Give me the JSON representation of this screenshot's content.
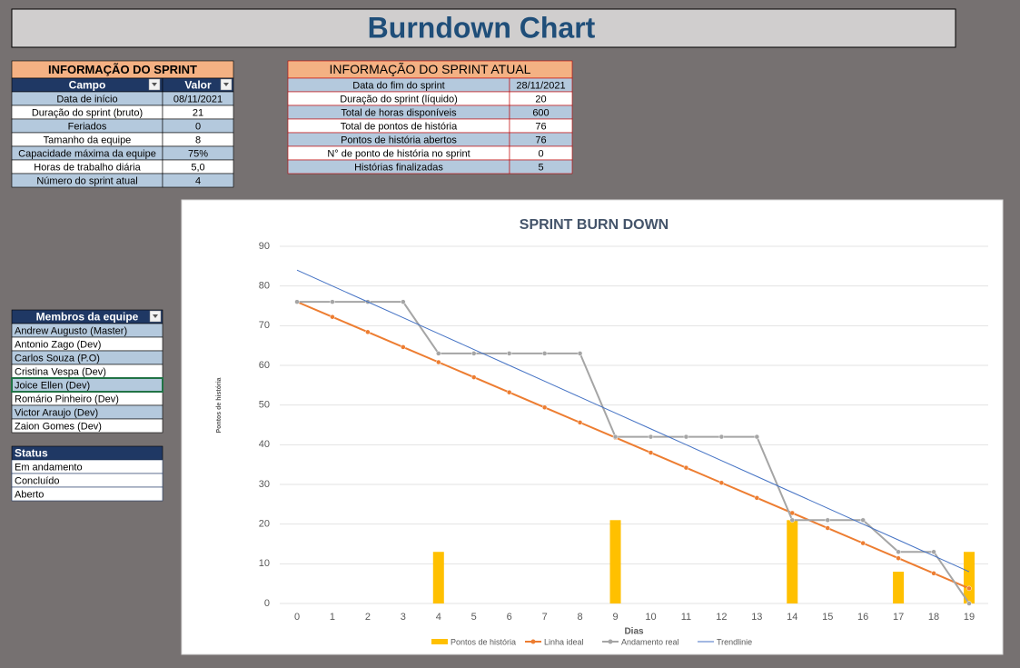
{
  "header": {
    "title": "Burndown Chart"
  },
  "sprint_info": {
    "title": "INFORMAÇÃO DO SPRINT",
    "columns": [
      "Campo",
      "Valor"
    ],
    "rows": [
      [
        "Data de início",
        "08/11/2021"
      ],
      [
        "Duração do sprint (bruto)",
        "21"
      ],
      [
        "Feriados",
        "0"
      ],
      [
        "Tamanho da equipe",
        "8"
      ],
      [
        "Capacidade máxima da equipe",
        "75%"
      ],
      [
        "Horas de trabalho diária",
        "5,0"
      ],
      [
        "Número do sprint atual",
        "4"
      ]
    ]
  },
  "current_sprint": {
    "title": "INFORMAÇÃO DO SPRINT ATUAL",
    "rows": [
      [
        "Data do fim do sprint",
        "28/11/2021"
      ],
      [
        "Duração do sprint (líquido)",
        "20"
      ],
      [
        "Total de horas disponíveis",
        "600"
      ],
      [
        "Total de pontos de história",
        "76"
      ],
      [
        "Pontos de história abertos",
        "76"
      ],
      [
        "N° de ponto de história no sprint",
        "0"
      ],
      [
        "Histórias finalizadas",
        "5"
      ]
    ]
  },
  "team": {
    "title": "Membros da equipe",
    "members": [
      "Andrew Augusto (Master)",
      "Antonio Zago (Dev)",
      "Carlos Souza (P.O)",
      "Cristina Vespa (Dev)",
      "Joice Ellen (Dev)",
      "Romário Pinheiro (Dev)",
      "Victor Araujo (Dev)",
      "Zaion Gomes (Dev)"
    ]
  },
  "status": {
    "title": "Status",
    "items": [
      "Em andamento",
      "Concluído",
      "Aberto"
    ]
  },
  "chart_data": {
    "type": "combo",
    "title": "SPRINT BURN DOWN",
    "x_label": "Dias",
    "y_label": "Pontos de história",
    "categories": [
      "0",
      "1",
      "2",
      "3",
      "4",
      "5",
      "6",
      "7",
      "8",
      "9",
      "10",
      "11",
      "12",
      "13",
      "14",
      "15",
      "16",
      "17",
      "18",
      "19"
    ],
    "ylim": [
      0,
      90
    ],
    "yticks": [
      0,
      10,
      20,
      30,
      40,
      50,
      60,
      70,
      80,
      90
    ],
    "grid": true,
    "legend": "bottom",
    "series": [
      {
        "name": "Pontos de história",
        "type": "bar",
        "color": "#ffc000",
        "values": [
          null,
          null,
          null,
          null,
          13,
          null,
          null,
          null,
          null,
          21,
          null,
          null,
          null,
          null,
          21,
          null,
          null,
          8,
          null,
          13
        ]
      },
      {
        "name": "Linha ideal",
        "type": "line",
        "markers": true,
        "color": "#ed7d31",
        "values": [
          76,
          72.2,
          68.4,
          64.6,
          60.8,
          57,
          53.2,
          49.4,
          45.6,
          41.8,
          38,
          34.2,
          30.4,
          26.6,
          22.8,
          19,
          15.2,
          11.4,
          7.6,
          3.8
        ]
      },
      {
        "name": "Andamento real",
        "type": "line",
        "markers": true,
        "color": "#a5a5a5",
        "values": [
          76,
          76,
          76,
          76,
          63,
          63,
          63,
          63,
          63,
          42,
          42,
          42,
          42,
          42,
          21,
          21,
          21,
          13,
          13,
          0
        ]
      },
      {
        "name": "Trendlinie",
        "type": "line",
        "markers": false,
        "color": "#4472c4",
        "values": [
          84,
          80,
          76,
          72,
          68,
          64,
          60,
          56,
          52,
          48,
          44,
          40,
          36,
          32,
          28,
          24,
          20,
          16,
          12,
          8
        ]
      }
    ]
  }
}
